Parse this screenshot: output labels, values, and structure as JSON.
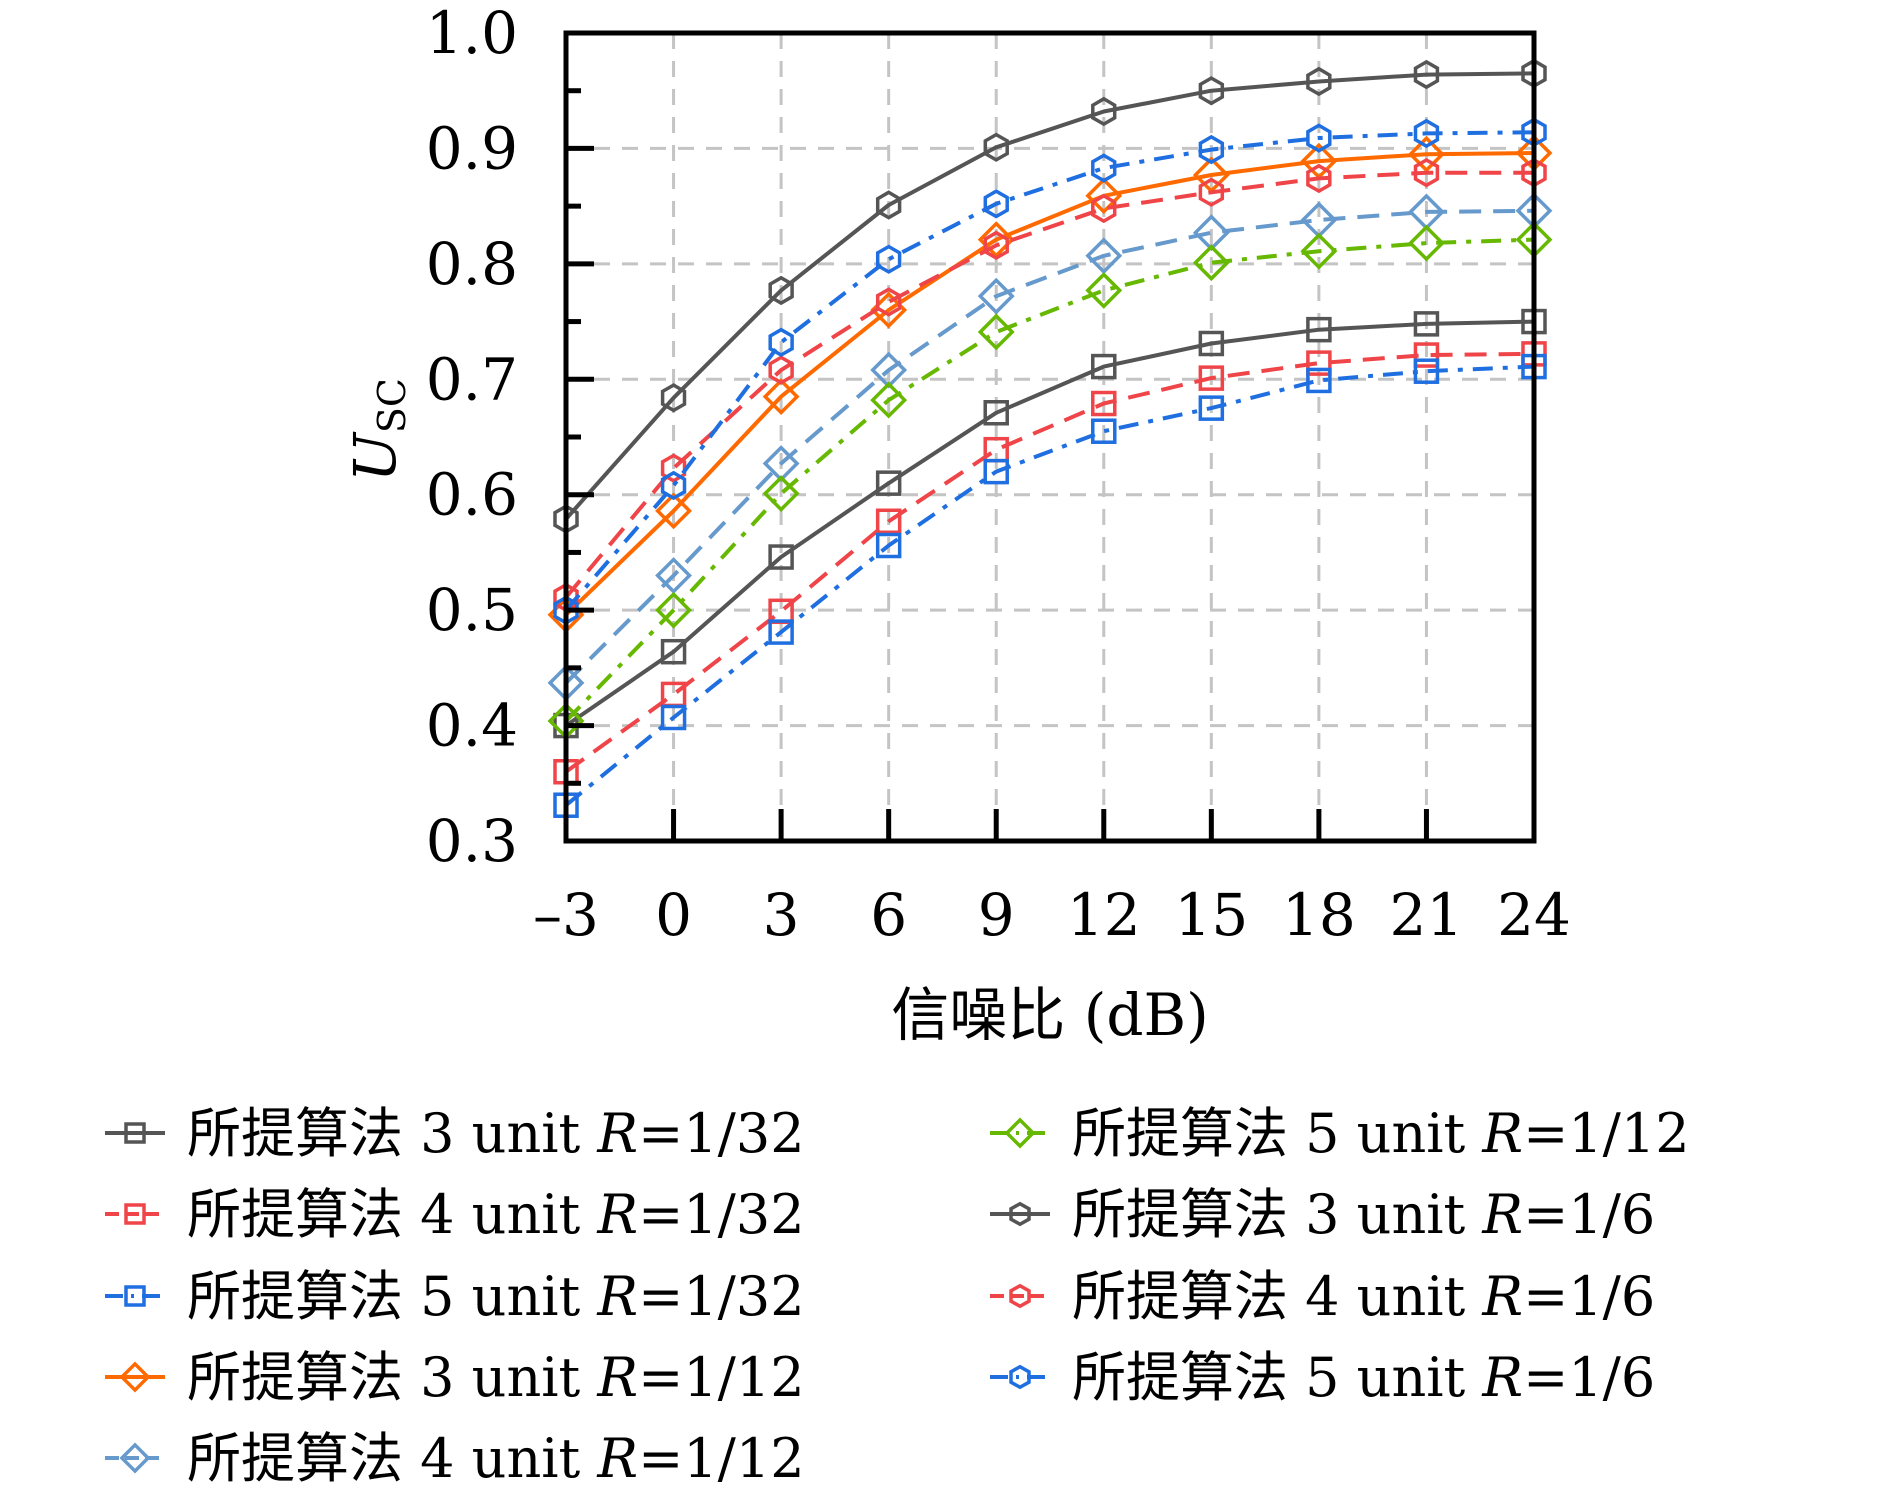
{
  "chart_data": {
    "type": "line",
    "title": "",
    "xlabel": "信噪比 (dB)",
    "ylabel": "U",
    "ylabel_sub": "SC",
    "x": [
      -3,
      0,
      3,
      6,
      9,
      12,
      15,
      18,
      21,
      24
    ],
    "x_tick_labels": [
      "–3",
      "0",
      "3",
      "6",
      "9",
      "12",
      "15",
      "18",
      "21",
      "24"
    ],
    "xlim": [
      -3,
      24
    ],
    "ylim": [
      0.3,
      1.0
    ],
    "y_ticks": [
      0.3,
      0.4,
      0.5,
      0.6,
      0.7,
      0.8,
      0.9,
      1.0
    ],
    "y_tick_labels": [
      "0.3",
      "0.4",
      "0.5",
      "0.6",
      "0.7",
      "0.8",
      "0.9",
      "1.0"
    ],
    "grid": true,
    "legend_position": "bottom",
    "series": [
      {
        "name": "所提算法 3 unit R=1/32",
        "label_main": "所提算法 3 unit ",
        "label_r": "R",
        "label_val": "=1/32",
        "color": "#555555",
        "marker": "square",
        "dash": "solid",
        "values": [
          0.4,
          0.464,
          0.546,
          0.61,
          0.671,
          0.711,
          0.731,
          0.743,
          0.748,
          0.75
        ]
      },
      {
        "name": "所提算法 4 unit R=1/32",
        "label_main": "所提算法 4 unit ",
        "label_r": "R",
        "label_val": "=1/32",
        "color": "#ef4549",
        "marker": "square",
        "dash": "dashed",
        "values": [
          0.36,
          0.427,
          0.499,
          0.577,
          0.639,
          0.679,
          0.701,
          0.714,
          0.721,
          0.722
        ]
      },
      {
        "name": "所提算法 5 unit R=1/32",
        "label_main": "所提算法 5 unit ",
        "label_r": "R",
        "label_val": "=1/32",
        "color": "#1f6fe0",
        "marker": "square",
        "dash": "dashdot",
        "values": [
          0.331,
          0.407,
          0.481,
          0.556,
          0.62,
          0.655,
          0.675,
          0.699,
          0.707,
          0.711
        ]
      },
      {
        "name": "所提算法 3 unit R=1/12",
        "label_main": "所提算法 3 unit ",
        "label_r": "R",
        "label_val": "=1/12",
        "color": "#ff6a00",
        "marker": "diamond",
        "dash": "solid",
        "values": [
          0.496,
          0.586,
          0.685,
          0.76,
          0.821,
          0.859,
          0.877,
          0.889,
          0.895,
          0.896
        ]
      },
      {
        "name": "所提算法 4 unit R=1/12",
        "label_main": "所提算法 4 unit ",
        "label_r": "R",
        "label_val": "=1/12",
        "color": "#6699cc",
        "marker": "diamond",
        "dash": "dashed",
        "values": [
          0.437,
          0.53,
          0.627,
          0.708,
          0.772,
          0.807,
          0.827,
          0.838,
          0.845,
          0.846
        ]
      },
      {
        "name": "所提算法 5 unit R=1/12",
        "label_main": "所提算法 5 unit ",
        "label_r": "R",
        "label_val": "=1/12",
        "color": "#66b800",
        "marker": "diamond",
        "dash": "dashdot",
        "values": [
          0.404,
          0.5,
          0.601,
          0.682,
          0.741,
          0.777,
          0.801,
          0.811,
          0.818,
          0.821
        ]
      },
      {
        "name": "所提算法 3 unit R=1/6",
        "label_main": "所提算法 3 unit ",
        "label_r": "R",
        "label_val": "=1/6",
        "color": "#555555",
        "marker": "hexagon",
        "dash": "solid",
        "values": [
          0.579,
          0.684,
          0.777,
          0.851,
          0.901,
          0.932,
          0.95,
          0.958,
          0.964,
          0.965
        ]
      },
      {
        "name": "所提算法 4 unit R=1/6",
        "label_main": "所提算法 4 unit ",
        "label_r": "R",
        "label_val": "=1/6",
        "color": "#ef4549",
        "marker": "hexagon",
        "dash": "dashed",
        "values": [
          0.511,
          0.623,
          0.708,
          0.767,
          0.816,
          0.848,
          0.862,
          0.874,
          0.879,
          0.879
        ]
      },
      {
        "name": "所提算法 5 unit R=1/6",
        "label_main": "所提算法 5 unit ",
        "label_r": "R",
        "label_val": "=1/6",
        "color": "#1f6fe0",
        "marker": "hexagon",
        "dash": "dashdot",
        "values": [
          0.5,
          0.608,
          0.732,
          0.804,
          0.852,
          0.883,
          0.899,
          0.909,
          0.913,
          0.914
        ]
      }
    ]
  }
}
